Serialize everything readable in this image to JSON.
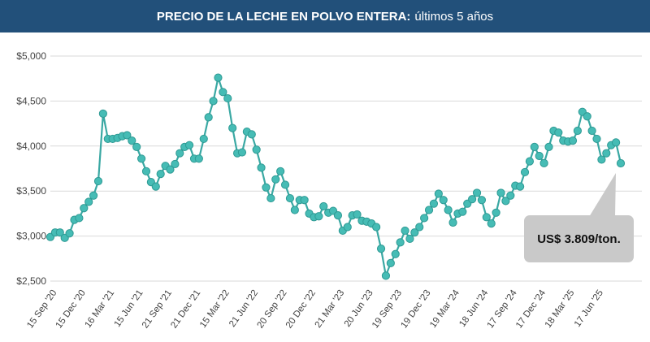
{
  "header": {
    "title_bold": "PRECIO DE LA LECHE EN POLVO ENTERA:",
    "title_rest": "últimos 5 años"
  },
  "callout": {
    "text": "US$ 3.809/ton."
  },
  "colors": {
    "header_bg": "#22507a",
    "line": "#3aa8a3",
    "marker": "#46bcb5",
    "grid": "#d9d9d9",
    "callout_bg": "#c9c9c9"
  },
  "chart_data": {
    "type": "line",
    "title": "PRECIO DE LA LECHE EN POLVO ENTERA: últimos 5 años",
    "xlabel": "",
    "ylabel": "",
    "ylim": [
      2500,
      5000
    ],
    "y_ticks": [
      2500,
      3000,
      3500,
      4000,
      4500,
      5000
    ],
    "y_tick_labels": [
      "$2,500",
      "$3,000",
      "$3,500",
      "$4,000",
      "$4,500",
      "$5,000"
    ],
    "x_tick_labels": [
      "15 Sep '20",
      "15 Dec '20",
      "16 Mar '21",
      "15 Jun '21",
      "21 Sep '21",
      "21 Dec '21",
      "15 Mar '22",
      "21 Jun '22",
      "20 Sep '22",
      "20 Dec '22",
      "21 Mar '23",
      "20 Jun '23",
      "19 Sep '23",
      "19 Dec '23",
      "19 Mar '24",
      "18 Jun '24",
      "17 Sep '24",
      "17 Dec '24",
      "18 Mar '25",
      "17 Jun '25"
    ],
    "x_tick_index": [
      0,
      6,
      12,
      18,
      24,
      30,
      36,
      42,
      48,
      54,
      60,
      66,
      72,
      78,
      84,
      90,
      96,
      102,
      108,
      114
    ],
    "grid": true,
    "legend": "none",
    "series": [
      {
        "values": [
          2990,
          3040,
          3040,
          2980,
          3030,
          3180,
          3200,
          3310,
          3380,
          3450,
          3610,
          4360,
          4080,
          4080,
          4090,
          4110,
          4120,
          4060,
          3990,
          3860,
          3720,
          3600,
          3550,
          3690,
          3780,
          3740,
          3800,
          3920,
          3990,
          4010,
          3860,
          3860,
          4080,
          4320,
          4500,
          4760,
          4600,
          4530,
          4200,
          3920,
          3930,
          4160,
          4130,
          3960,
          3760,
          3540,
          3420,
          3630,
          3720,
          3570,
          3420,
          3290,
          3400,
          3400,
          3250,
          3210,
          3220,
          3330,
          3260,
          3280,
          3230,
          3060,
          3100,
          3230,
          3240,
          3170,
          3160,
          3140,
          3100,
          2860,
          2560,
          2700,
          2800,
          2930,
          3060,
          2970,
          3040,
          3100,
          3200,
          3290,
          3360,
          3470,
          3400,
          3290,
          3150,
          3250,
          3270,
          3360,
          3410,
          3480,
          3400,
          3210,
          3140,
          3260,
          3480,
          3390,
          3450,
          3560,
          3550,
          3710,
          3830,
          3990,
          3890,
          3810,
          3990,
          4170,
          4150,
          4060,
          4050,
          4060,
          4170,
          4380,
          4330,
          4170,
          4080,
          3850,
          3920,
          4010,
          4040,
          3809
        ]
      }
    ]
  }
}
